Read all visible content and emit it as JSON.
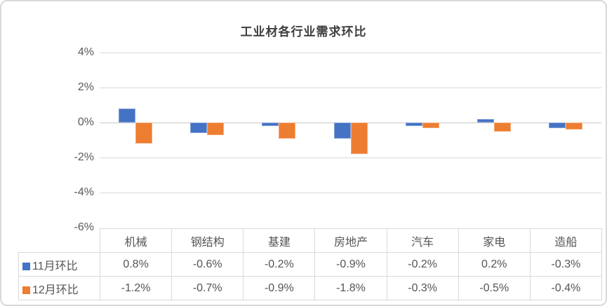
{
  "window": {
    "background": "#ffffff",
    "border_color": "#d9d9d9"
  },
  "chart_data": {
    "type": "bar",
    "title": "工业材各行业需求环比",
    "categories": [
      "机械",
      "钢结构",
      "基建",
      "房地产",
      "汽车",
      "家电",
      "造船"
    ],
    "series": [
      {
        "name": "11月环比",
        "color": "#4472C4",
        "values": [
          0.8,
          -0.6,
          -0.2,
          -0.9,
          -0.2,
          0.2,
          -0.3
        ],
        "labels": [
          "0.8%",
          "-0.6%",
          "-0.2%",
          "-0.9%",
          "-0.2%",
          "0.2%",
          "-0.3%"
        ]
      },
      {
        "name": "12月环比",
        "color": "#ED7D31",
        "values": [
          -1.2,
          -0.7,
          -0.9,
          -1.8,
          -0.3,
          -0.5,
          -0.4
        ],
        "labels": [
          "-1.2%",
          "-0.7%",
          "-0.9%",
          "-1.8%",
          "-0.3%",
          "-0.5%",
          "-0.4%"
        ]
      }
    ],
    "xlabel": "",
    "ylabel": "",
    "ylim": [
      -6,
      4
    ],
    "ytick_step": 2,
    "ytick_labels": [
      "4%",
      "2%",
      "0%",
      "-2%",
      "-4%",
      "-6%"
    ],
    "grid": true,
    "gridline_color": "#d9d9d9",
    "zero_line_color": "#c8c8c8",
    "axis_text_color": "#595959",
    "title_color": "#3f3f3f",
    "legend_position": "data-table-left",
    "data_table": true,
    "table_border_color": "#d9d9d9"
  }
}
